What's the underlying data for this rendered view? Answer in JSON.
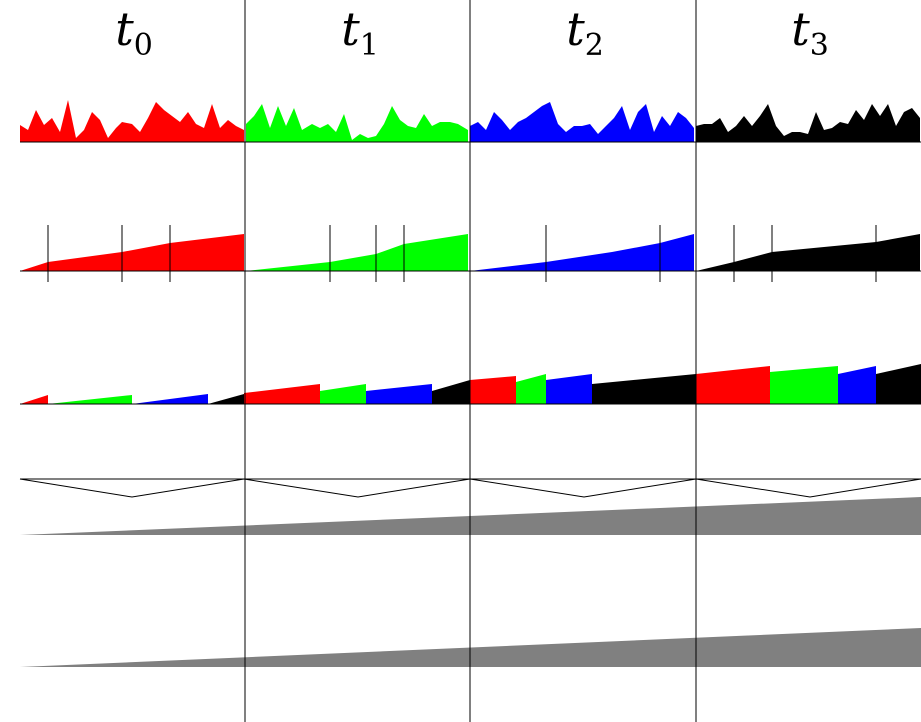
{
  "columns": [
    {
      "var": "t",
      "sub": "0"
    },
    {
      "var": "t",
      "sub": "1"
    },
    {
      "var": "t",
      "sub": "2"
    },
    {
      "var": "t",
      "sub": "3"
    }
  ],
  "colors": {
    "c0": "#ff0000",
    "c1": "#00ff00",
    "c2": "#0000ff",
    "c3": "#000000",
    "ramp": "#808080",
    "line": "#000000"
  }
}
